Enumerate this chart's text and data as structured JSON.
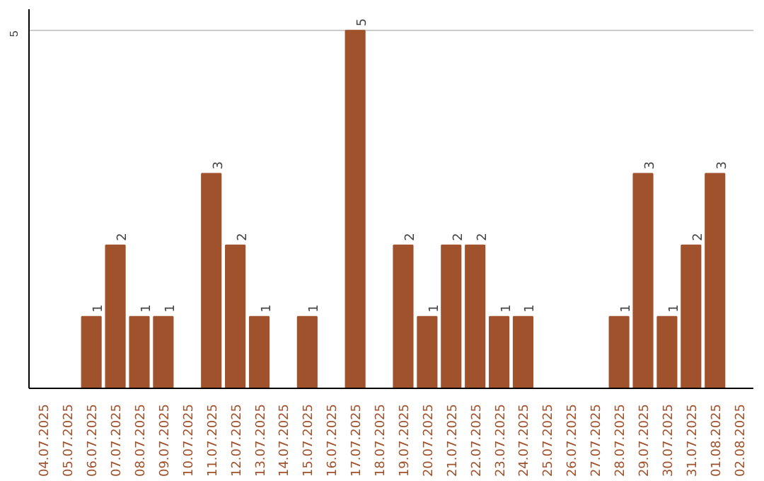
{
  "chart_data": {
    "type": "bar",
    "categories": [
      "04.07.2025",
      "05.07.2025",
      "06.07.2025",
      "07.07.2025",
      "08.07.2025",
      "09.07.2025",
      "10.07.2025",
      "11.07.2025",
      "12.07.2025",
      "13.07.2025",
      "14.07.2025",
      "15.07.2025",
      "16.07.2025",
      "17.07.2025",
      "18.07.2025",
      "19.07.2025",
      "20.07.2025",
      "21.07.2025",
      "22.07.2025",
      "23.07.2025",
      "24.07.2025",
      "25.07.2025",
      "26.07.2025",
      "27.07.2025",
      "28.07.2025",
      "29.07.2025",
      "30.07.2025",
      "31.07.2025",
      "01.08.2025",
      "02.08.2025"
    ],
    "values": [
      0,
      0,
      1,
      2,
      1,
      1,
      0,
      3,
      2,
      1,
      0,
      1,
      0,
      5,
      0,
      2,
      1,
      2,
      2,
      1,
      1,
      0,
      0,
      0,
      1,
      3,
      1,
      2,
      3,
      0
    ],
    "value_labels": [
      null,
      null,
      "1",
      "2",
      "1",
      "1",
      null,
      "3",
      "2",
      "1",
      null,
      "1",
      null,
      "5",
      null,
      "2",
      "1",
      "2",
      "2",
      "1",
      "1",
      null,
      null,
      null,
      "1",
      "3",
      "1",
      "2",
      "3",
      null
    ],
    "color": "#a0522d",
    "ylim": [
      0,
      5.3
    ],
    "yticks": [
      5
    ],
    "grid": "y"
  }
}
